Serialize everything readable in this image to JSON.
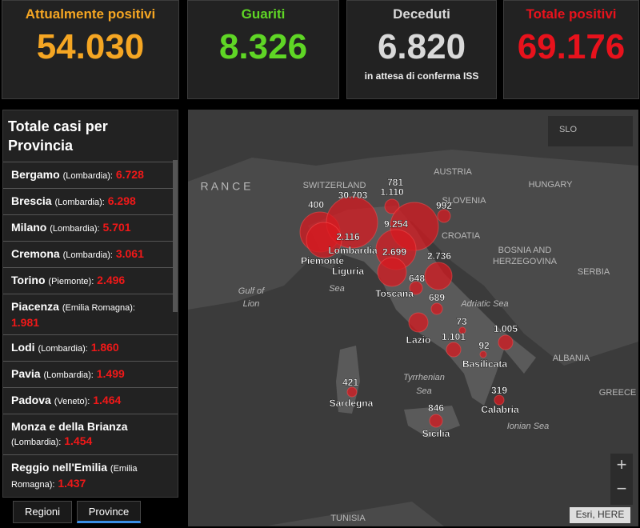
{
  "cards": [
    {
      "title": "Attualmente positivi",
      "value": "54.030",
      "color": "#f5a623"
    },
    {
      "title": "Guariti",
      "value": "8.326",
      "color": "#5fd625"
    },
    {
      "title": "Deceduti",
      "value": "6.820",
      "color": "#d9d9d9",
      "note": "in attesa di conferma ISS"
    },
    {
      "title": "Totale positivi",
      "value": "69.176",
      "color": "#e8121c"
    }
  ],
  "list": {
    "title": "Totale casi per Provincia",
    "items": [
      {
        "name": "Bergamo",
        "region": "(Lombardia):",
        "value": "6.728"
      },
      {
        "name": "Brescia",
        "region": "(Lombardia):",
        "value": "6.298"
      },
      {
        "name": "Milano",
        "region": "(Lombardia):",
        "value": "5.701"
      },
      {
        "name": "Cremona",
        "region": "(Lombardia):",
        "value": "3.061"
      },
      {
        "name": "Torino",
        "region": "(Piemonte):",
        "value": "2.496"
      },
      {
        "name": "Piacenza",
        "region": "(Emilia Romagna):",
        "value": "1.981"
      },
      {
        "name": "Lodi",
        "region": "(Lombardia):",
        "value": "1.860"
      },
      {
        "name": "Pavia",
        "region": "(Lombardia):",
        "value": "1.499"
      },
      {
        "name": "Padova",
        "region": "(Veneto):",
        "value": "1.464"
      },
      {
        "name": "Monza e della Brianza",
        "region": "(Lombardia):",
        "value": "1.454"
      },
      {
        "name": "Reggio nell'Emilia",
        "region": "(Emilia Romagna):",
        "value": "1.437"
      }
    ]
  },
  "tabs": [
    "Regioni",
    "Province"
  ],
  "map": {
    "places": [
      "R A N C E",
      "SWITZERLAND",
      "AUSTRIA",
      "SLOVENIA",
      "HUNGARY",
      "CROATIA",
      "BOSNIA AND",
      "HERZEGOVINA",
      "SERBIA",
      "Gulf of",
      "Lion",
      "Sea",
      "Adriatic Sea",
      "Tyrrhenian",
      "Sea",
      "ALBANIA",
      "GREECE",
      "Ionian Sea",
      "TUNISIA",
      "SLO"
    ],
    "markers": [
      "400",
      "30.703",
      "781",
      "1.110",
      "992",
      "9.254",
      "2.116",
      "2.699",
      "2.736",
      "648",
      "689",
      "73",
      "1.101",
      "1.005",
      "92",
      "421",
      "319",
      "846"
    ],
    "regions": [
      "Lombardia",
      "Piemonte",
      "Liguria",
      "Toscana",
      "Lazio",
      "Basilicata",
      "Sardegna",
      "Calabria",
      "Sicilia"
    ],
    "zoom": [
      "+",
      "−"
    ],
    "attribution": "Esri, HERE"
  }
}
